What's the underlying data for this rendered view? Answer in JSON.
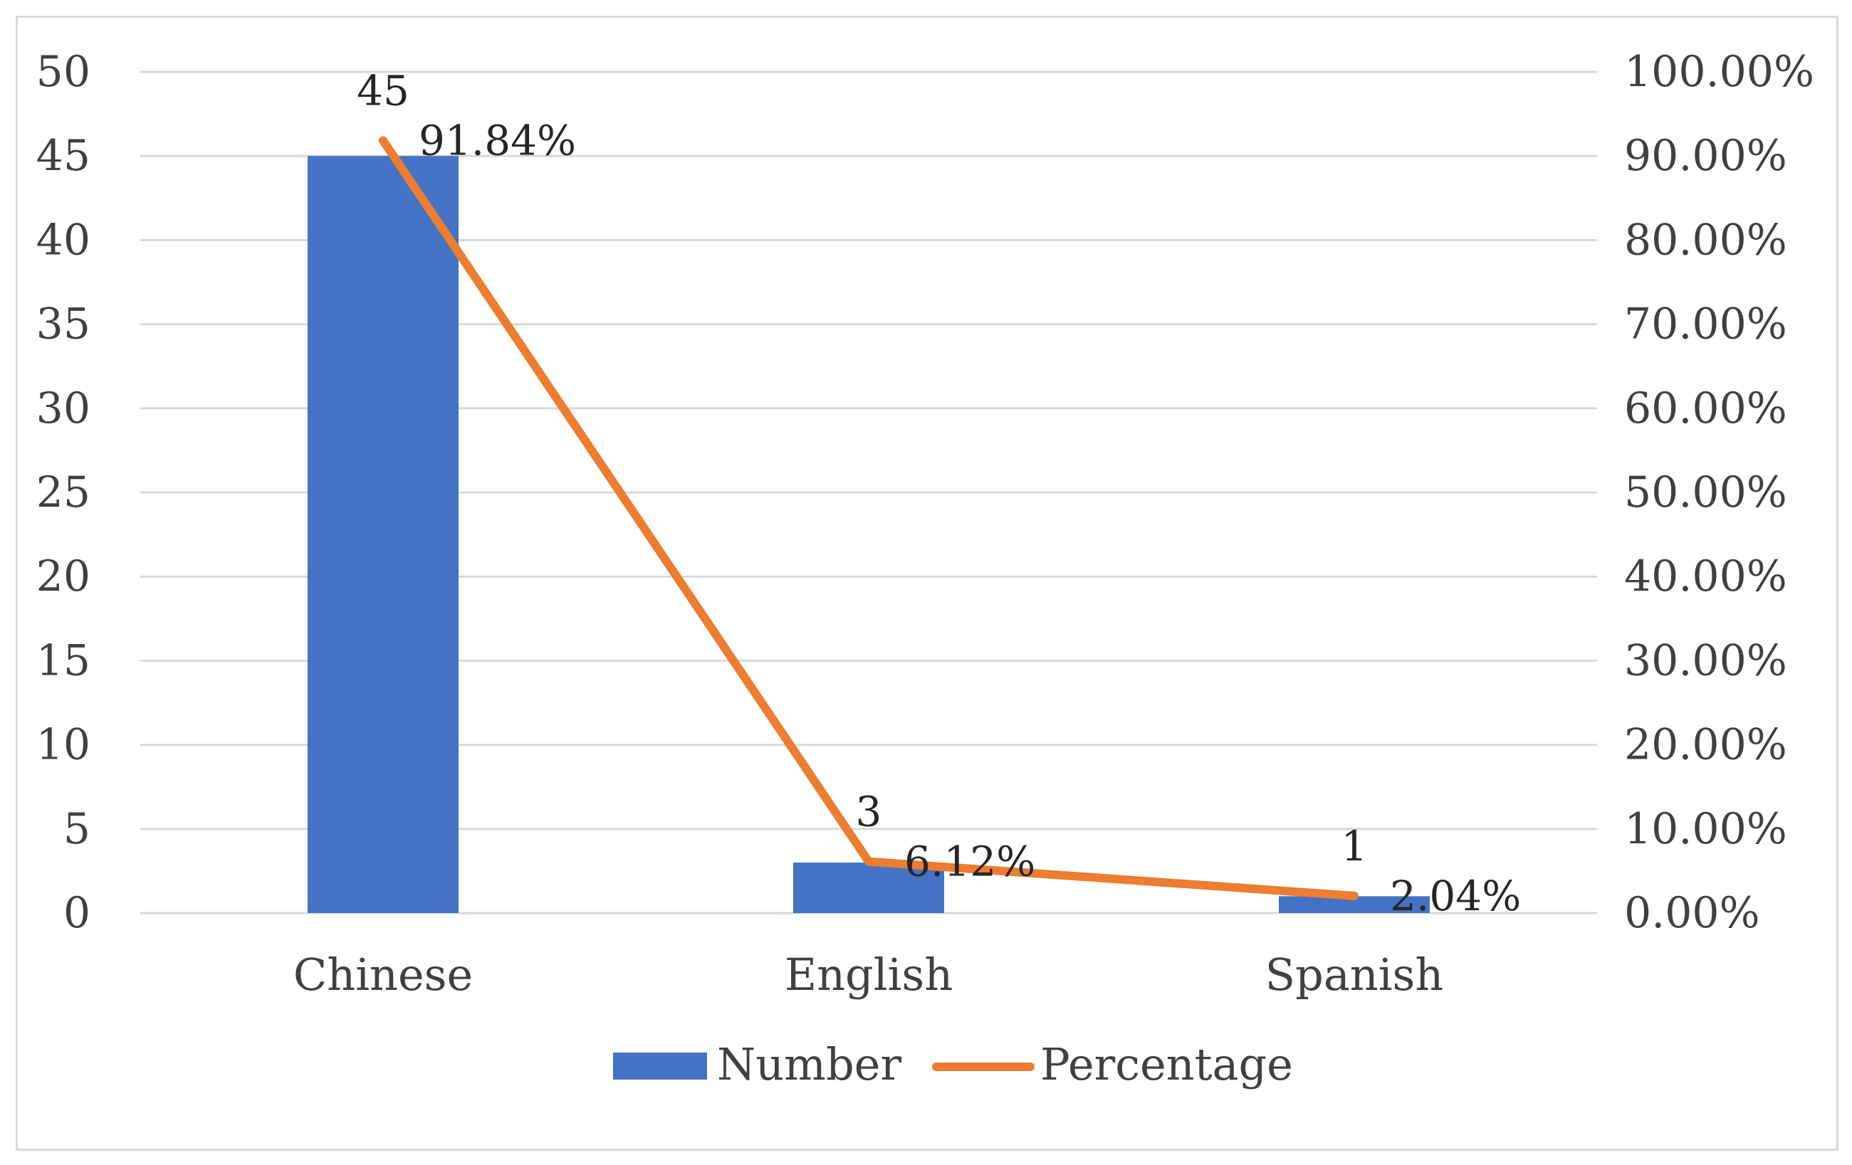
{
  "chart_data": {
    "type": "bar",
    "title": "",
    "xlabel": "",
    "ylabel": "",
    "categories": [
      "Chinese",
      "English",
      "Spanish"
    ],
    "series": [
      {
        "name": "Number",
        "type": "bar",
        "axis": "left",
        "values": [
          45,
          3,
          1
        ],
        "labels": [
          "45",
          "3",
          "1"
        ],
        "color": "#4472c4"
      },
      {
        "name": "Percentage",
        "type": "line",
        "axis": "right",
        "values": [
          91.84,
          6.12,
          2.04
        ],
        "labels": [
          "91.84%",
          "6.12%",
          "2.04%"
        ],
        "color": "#ed7d31"
      }
    ],
    "ylim": [
      0,
      50
    ],
    "y_ticks": [
      "0",
      "5",
      "10",
      "15",
      "20",
      "25",
      "30",
      "35",
      "40",
      "45",
      "50"
    ],
    "y2lim": [
      0,
      100
    ],
    "y2_ticks": [
      "0.00%",
      "10.00%",
      "20.00%",
      "30.00%",
      "40.00%",
      "50.00%",
      "60.00%",
      "70.00%",
      "80.00%",
      "90.00%",
      "100.00%"
    ],
    "grid": true,
    "gridline_color": "#d9d9d9",
    "legend": {
      "position": "bottom",
      "entries": [
        "Number",
        "Percentage"
      ]
    }
  }
}
